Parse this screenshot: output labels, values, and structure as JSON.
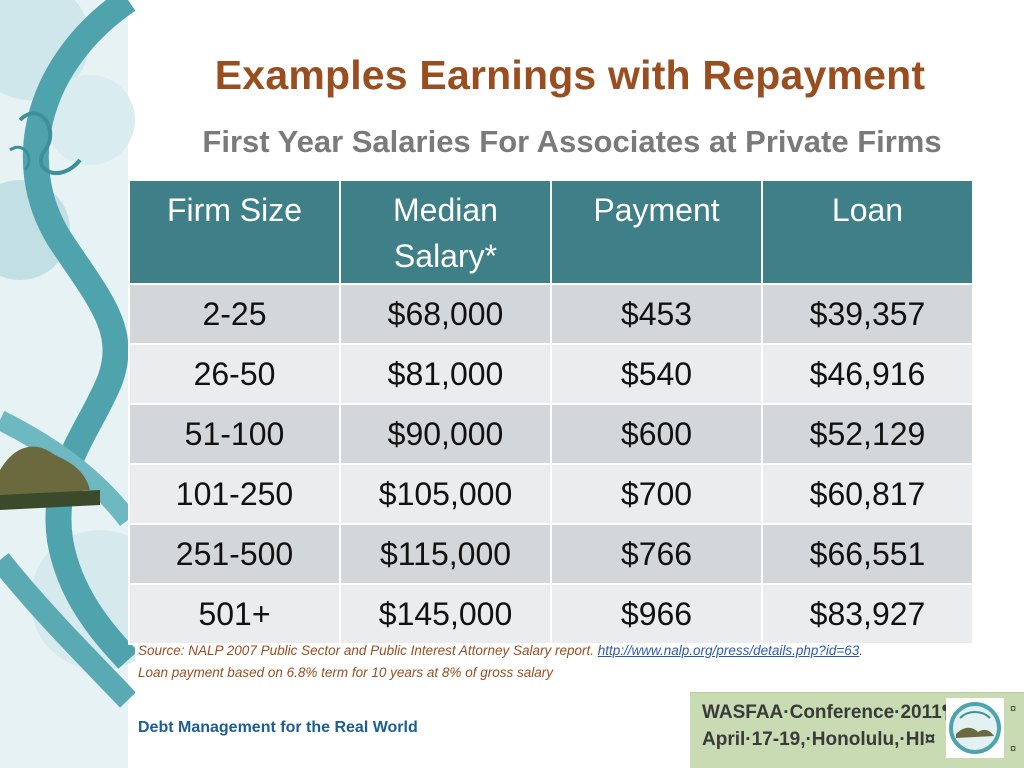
{
  "slide": {
    "title": "Examples Earnings with Repayment",
    "subtitle": "First Year Salaries For Associates at Private Firms"
  },
  "table": {
    "headers": [
      "Firm Size",
      "Median Salary*",
      "Payment",
      "Loan"
    ],
    "header_lines": [
      [
        "Firm Size"
      ],
      [
        "Median",
        "Salary*"
      ],
      [
        "Payment"
      ],
      [
        "Loan"
      ]
    ],
    "rows": [
      [
        "2-25",
        "$68,000",
        "$453",
        "$39,357"
      ],
      [
        "26-50",
        "$81,000",
        "$540",
        "$46,916"
      ],
      [
        "51-100",
        "$90,000",
        "$600",
        "$52,129"
      ],
      [
        "101-250",
        "$105,000",
        "$700",
        "$60,817"
      ],
      [
        "251-500",
        "$115,000",
        "$766",
        "$66,551"
      ],
      [
        "501+",
        "$145,000",
        "$966",
        "$83,927"
      ]
    ]
  },
  "source": {
    "prefix": "Source:  NALP 2007 Public Sector and Public Interest Attorney Salary report. ",
    "link_text": "http://www.nalp.org/press/details.php?id=63",
    "suffix": ".",
    "note": "Loan payment based on 6.8% term for 10 years at 8% of gross salary"
  },
  "footer": {
    "text": "Debt Management for the Real World"
  },
  "conference": {
    "line1": "WASFAA·Conference·2011¶",
    "line2": "April·17-19,·Honolulu,·HI¤",
    "mark": "¤"
  },
  "colors": {
    "title": "#9a4e1f",
    "header_bg": "#3f7f87",
    "row_odd": "#d4d7da",
    "row_even": "#eaecee",
    "footer_text": "#1b5e96",
    "conference_bg": "#c9dbb2"
  }
}
